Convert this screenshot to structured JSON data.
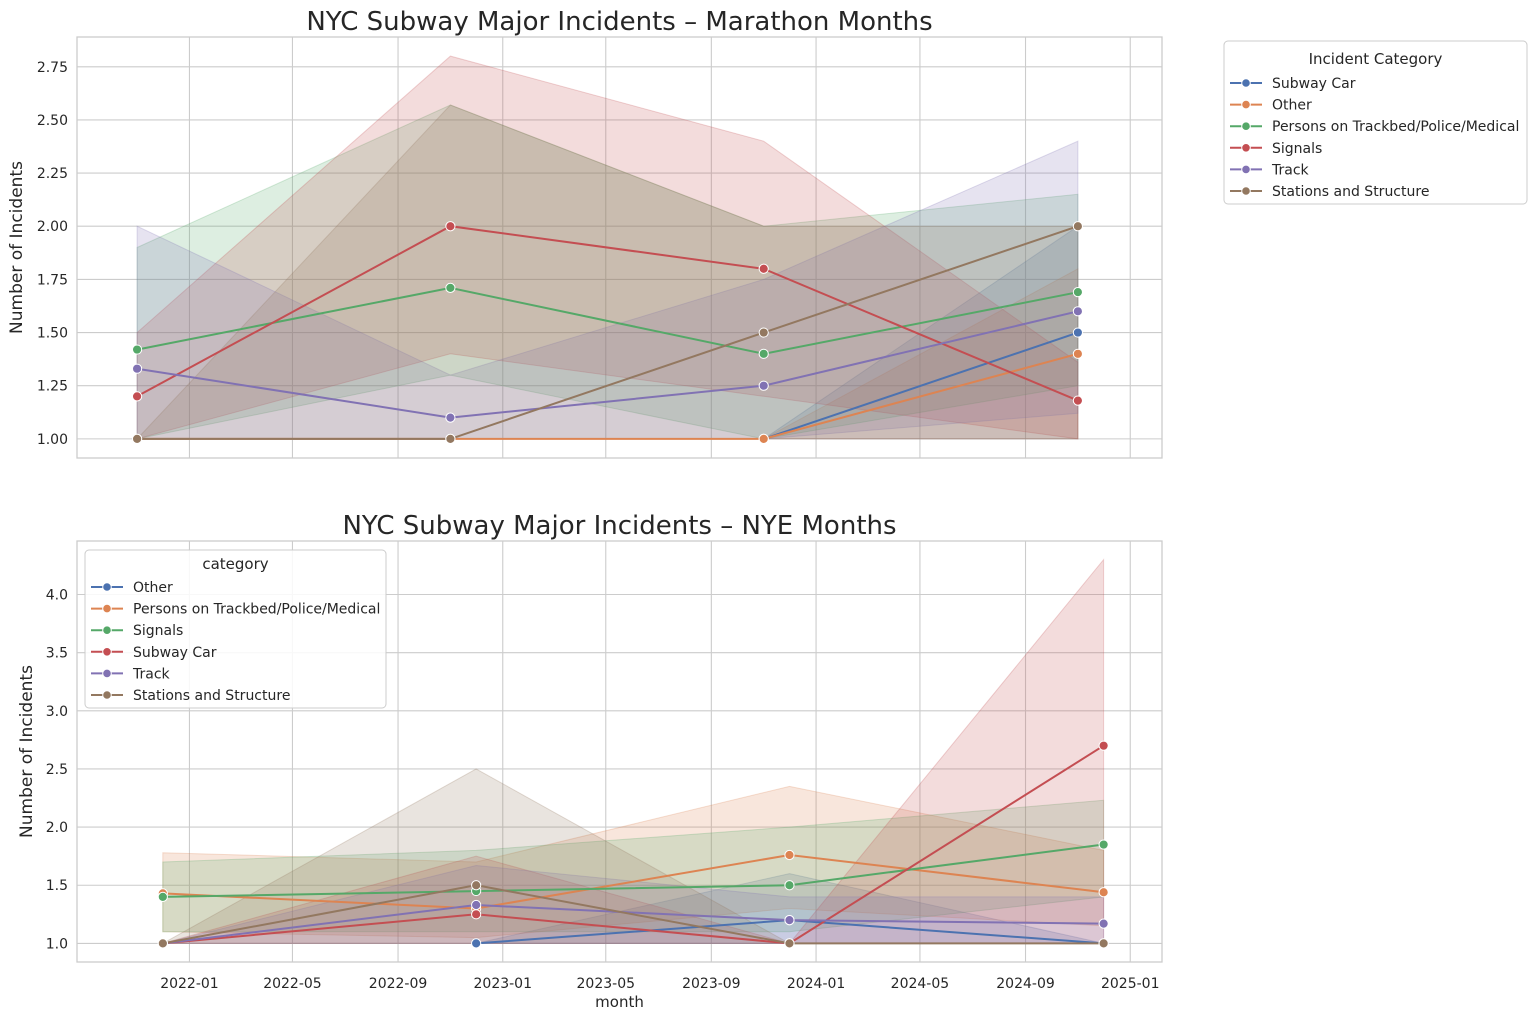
{
  "chart_data": [
    {
      "type": "line",
      "title": "NYC Subway Major Incidents – Marathon Months",
      "xlabel": "",
      "ylabel": "Number of Incidents",
      "ylim": [
        0.91,
        2.89
      ],
      "yticks": [
        1.0,
        1.25,
        1.5,
        1.75,
        2.0,
        2.25,
        2.5,
        2.75
      ],
      "ytick_labels": [
        "1.00",
        "1.25",
        "1.50",
        "1.75",
        "2.00",
        "2.25",
        "2.50",
        "2.75"
      ],
      "x_dates": [
        "2021-11-01",
        "2022-11-01",
        "2023-11-01",
        "2024-11-01"
      ],
      "grid": true,
      "legend": {
        "title": "Incident Category",
        "placement": "outside-right",
        "entries": [
          "Subway Car",
          "Other",
          "Persons on Trackbed/Police/Medical",
          "Signals",
          "Track",
          "Stations and Structure"
        ]
      },
      "series": [
        {
          "name": "Subway Car",
          "color": "#4c72b0",
          "x": [
            "2023-11-01",
            "2024-11-01"
          ],
          "values": [
            1.0,
            1.5
          ],
          "ci_low": [
            1.0,
            1.0
          ],
          "ci_high": [
            1.0,
            2.0
          ]
        },
        {
          "name": "Other",
          "color": "#dd8452",
          "x": [
            "2021-11-01",
            "2022-11-01",
            "2023-11-01",
            "2024-11-01"
          ],
          "values": [
            1.0,
            1.0,
            1.0,
            1.4
          ],
          "ci_low": [
            1.0,
            1.0,
            1.0,
            1.0
          ],
          "ci_high": [
            1.0,
            1.0,
            1.0,
            1.8
          ]
        },
        {
          "name": "Persons on Trackbed/Police/Medical",
          "color": "#55a868",
          "x": [
            "2021-11-01",
            "2022-11-01",
            "2023-11-01",
            "2024-11-01"
          ],
          "values": [
            1.42,
            1.71,
            1.4,
            1.69
          ],
          "ci_low": [
            1.0,
            1.3,
            1.0,
            1.25
          ],
          "ci_high": [
            1.9,
            2.57,
            2.0,
            2.15
          ]
        },
        {
          "name": "Signals",
          "color": "#c44e52",
          "x": [
            "2021-11-01",
            "2022-11-01",
            "2023-11-01",
            "2024-11-01"
          ],
          "values": [
            1.2,
            2.0,
            1.8,
            1.18
          ],
          "ci_low": [
            1.0,
            1.4,
            1.2,
            1.0
          ],
          "ci_high": [
            1.5,
            2.8,
            2.4,
            1.36
          ]
        },
        {
          "name": "Track",
          "color": "#8172b3",
          "x": [
            "2021-11-01",
            "2022-11-01",
            "2023-11-01",
            "2024-11-01"
          ],
          "values": [
            1.33,
            1.1,
            1.25,
            1.6
          ],
          "ci_low": [
            1.0,
            1.0,
            1.0,
            1.12
          ],
          "ci_high": [
            2.0,
            1.3,
            1.75,
            2.4
          ]
        },
        {
          "name": "Stations and Structure",
          "color": "#937860",
          "x": [
            "2021-11-01",
            "2022-11-01",
            "2023-11-01",
            "2024-11-01"
          ],
          "values": [
            1.0,
            1.0,
            1.5,
            2.0
          ],
          "ci_low": [
            1.0,
            1.0,
            1.0,
            1.0
          ],
          "ci_high": [
            1.0,
            2.57,
            2.0,
            2.0
          ]
        }
      ]
    },
    {
      "type": "line",
      "title": "NYC Subway Major Incidents – NYE Months",
      "xlabel": "month",
      "ylabel": "Number of Incidents",
      "ylim": [
        0.84,
        4.46
      ],
      "yticks": [
        1.0,
        1.5,
        2.0,
        2.5,
        3.0,
        3.5,
        4.0
      ],
      "ytick_labels": [
        "1.0",
        "1.5",
        "2.0",
        "2.5",
        "3.0",
        "3.5",
        "4.0"
      ],
      "x_dates": [
        "2021-12-01",
        "2022-12-01",
        "2023-12-01",
        "2024-12-01"
      ],
      "x_tick_labels": [
        "2022-01",
        "2022-05",
        "2022-09",
        "2023-01",
        "2023-05",
        "2023-09",
        "2024-01",
        "2024-05",
        "2024-09",
        "2025-01"
      ],
      "grid": true,
      "legend": {
        "title": "category",
        "placement": "upper-left",
        "entries": [
          "Other",
          "Persons on Trackbed/Police/Medical",
          "Signals",
          "Subway Car",
          "Track",
          "Stations and Structure"
        ]
      },
      "series": [
        {
          "name": "Other",
          "color": "#4c72b0",
          "x": [
            "2022-12-01",
            "2023-12-01",
            "2024-12-01"
          ],
          "values": [
            1.0,
            1.2,
            1.0
          ],
          "ci_low": [
            1.0,
            1.0,
            1.0
          ],
          "ci_high": [
            1.0,
            1.6,
            1.0
          ]
        },
        {
          "name": "Persons on Trackbed/Police/Medical",
          "color": "#dd8452",
          "x": [
            "2021-12-01",
            "2022-12-01",
            "2023-12-01",
            "2024-12-01"
          ],
          "values": [
            1.43,
            1.3,
            1.76,
            1.44
          ],
          "ci_low": [
            1.1,
            1.05,
            1.3,
            1.15
          ],
          "ci_high": [
            1.78,
            1.7,
            2.35,
            1.8
          ]
        },
        {
          "name": "Signals",
          "color": "#55a868",
          "x": [
            "2021-12-01",
            "2022-12-01",
            "2023-12-01",
            "2024-12-01"
          ],
          "values": [
            1.4,
            1.45,
            1.5,
            1.85
          ],
          "ci_low": [
            1.1,
            1.1,
            1.1,
            1.4
          ],
          "ci_high": [
            1.7,
            1.8,
            2.0,
            2.23
          ]
        },
        {
          "name": "Subway Car",
          "color": "#c44e52",
          "x": [
            "2021-12-01",
            "2022-12-01",
            "2023-12-01",
            "2024-12-01"
          ],
          "values": [
            1.0,
            1.25,
            1.0,
            2.7
          ],
          "ci_low": [
            1.0,
            1.0,
            1.0,
            1.0
          ],
          "ci_high": [
            1.0,
            1.75,
            1.0,
            4.3
          ]
        },
        {
          "name": "Track",
          "color": "#8172b3",
          "x": [
            "2021-12-01",
            "2022-12-01",
            "2023-12-01",
            "2024-12-01"
          ],
          "values": [
            1.0,
            1.33,
            1.2,
            1.17
          ],
          "ci_low": [
            1.0,
            1.0,
            1.0,
            1.0
          ],
          "ci_high": [
            1.0,
            1.67,
            1.4,
            1.4
          ]
        },
        {
          "name": "Stations and Structure",
          "color": "#937860",
          "x": [
            "2021-12-01",
            "2022-12-01",
            "2023-12-01",
            "2024-12-01"
          ],
          "values": [
            1.0,
            1.5,
            1.0,
            1.0
          ],
          "ci_low": [
            1.0,
            1.0,
            1.0,
            1.0
          ],
          "ci_high": [
            1.0,
            2.5,
            1.0,
            1.0
          ]
        }
      ]
    }
  ]
}
